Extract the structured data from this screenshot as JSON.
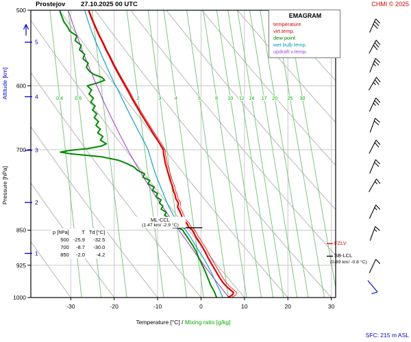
{
  "header": {
    "station": "Prostejov",
    "datetime": "27.10.2025 00 UTC",
    "copyright": "CHMI © 2025"
  },
  "legend": {
    "title": "EMAGRAM",
    "entries": [
      {
        "label": "temperature",
        "color": "#dd0000"
      },
      {
        "label": "virt.temp.",
        "color": "#dd0000"
      },
      {
        "label": "dew point",
        "color": "#008800"
      },
      {
        "label": "wet bulb temp.",
        "color": "#0099bb"
      },
      {
        "label": "updraft v.temp.",
        "color": "#aa44cc"
      }
    ]
  },
  "side_labels": {
    "pressure": "Pressure [hPa]",
    "altitude": "Altitude [km]"
  },
  "bottom_axis": {
    "label_temp": "Temperature [°C] /",
    "label_mix": "Mixing ratio [g/kg]"
  },
  "annotations": {
    "ml_ccl": {
      "label": "ML-CCL",
      "detail": "(1.47 km/ -2.9 °C)"
    },
    "fzlv": {
      "label": "FZLV"
    },
    "sb_lcl": {
      "label": "SB-LCL",
      "detail": "(0.89 km/ -0.8 °C)"
    },
    "sfc": "SFC: 215 m ASL"
  },
  "sounding_table": {
    "header": [
      "p [hPa]",
      "T",
      "Td [°C]"
    ],
    "rows": [
      [
        "500",
        "-25.9",
        "-32.5"
      ],
      [
        "700",
        "-8.7",
        "-30.0"
      ],
      [
        "850",
        "-2.0",
        "-4.2"
      ]
    ]
  },
  "chart_data": {
    "type": "line",
    "diagram": "emagram sounding",
    "title": "EMAGRAM",
    "x_axis": {
      "label": "Temperature [°C]",
      "ticks": [
        -30,
        -20,
        -10,
        0,
        10,
        20,
        30
      ],
      "range": [
        -39.2,
        31.0
      ]
    },
    "y_axis": {
      "label": "Pressure [hPa]",
      "ticks": [
        500,
        600,
        700,
        850,
        925,
        1000
      ],
      "scale": "log",
      "range": [
        500,
        1000
      ]
    },
    "altitude_ticks": [
      {
        "km": 1,
        "p": 899
      },
      {
        "km": 2,
        "p": 795
      },
      {
        "km": 3,
        "p": 701
      },
      {
        "km": 4,
        "p": 616
      },
      {
        "km": 5,
        "p": 540
      }
    ],
    "mixing_label_p": 618,
    "mixing_ratio_lines": [
      {
        "label": "0.4",
        "t1000": -27.5,
        "t500": -34.8
      },
      {
        "label": "0.6",
        "t1000": -23.0,
        "t500": -30.6
      },
      {
        "label": "1",
        "t1000": -17.1,
        "t500": -25.1
      },
      {
        "label": "2",
        "t1000": -8.6,
        "t500": -17.1
      },
      {
        "label": "3",
        "t1000": -3.3,
        "t500": -12.2
      },
      {
        "label": "4",
        "t1000": 0.6,
        "t500": -8.6
      },
      {
        "label": "6",
        "t1000": 6.3,
        "t500": -3.3
      },
      {
        "label": "8",
        "t1000": 10.5,
        "t500": 0.5
      },
      {
        "label": "10",
        "t1000": 13.9,
        "t500": 3.6
      },
      {
        "label": "12",
        "t1000": 16.6,
        "t500": 6.2
      },
      {
        "label": "14",
        "t1000": 19.0,
        "t500": 8.4
      },
      {
        "label": "17",
        "t1000": 22.1,
        "t500": 11.2
      },
      {
        "label": "20",
        "t1000": 24.7,
        "t500": 13.6
      },
      {
        "label": "25",
        "t1000": 28.4,
        "t500": 17.0
      },
      {
        "label": "30",
        "t1000": 31.4,
        "t500": 19.8
      }
    ],
    "dry_adiabats_theta": [
      -30,
      -20,
      -10,
      0,
      10,
      20,
      30,
      40,
      50,
      60,
      70,
      80,
      90
    ],
    "series": [
      {
        "name": "temperature",
        "color": "#dd0000",
        "width": 2.2,
        "points": [
          [
            1000,
            6.2
          ],
          [
            994,
            7.2
          ],
          [
            988,
            7.5
          ],
          [
            982,
            6.8
          ],
          [
            974,
            5.9
          ],
          [
            964,
            5.0
          ],
          [
            952,
            4.2
          ],
          [
            940,
            3.5
          ],
          [
            925,
            2.6
          ],
          [
            910,
            1.7
          ],
          [
            895,
            0.9
          ],
          [
            885,
            0.3
          ],
          [
            875,
            -0.4
          ],
          [
            862,
            -1.3
          ],
          [
            850,
            -2.0
          ],
          [
            843,
            -2.9
          ],
          [
            836,
            -3.3
          ],
          [
            828,
            -4.2
          ],
          [
            820,
            -4.5
          ],
          [
            812,
            -4.9
          ],
          [
            804,
            -5.4
          ],
          [
            796,
            -5.2
          ],
          [
            788,
            -5.8
          ],
          [
            780,
            -6.0
          ],
          [
            772,
            -6.4
          ],
          [
            764,
            -6.6
          ],
          [
            756,
            -7.0
          ],
          [
            748,
            -7.3
          ],
          [
            740,
            -7.6
          ],
          [
            732,
            -7.9
          ],
          [
            724,
            -8.2
          ],
          [
            716,
            -8.4
          ],
          [
            708,
            -8.6
          ],
          [
            700,
            -8.7
          ],
          [
            690,
            -9.5
          ],
          [
            680,
            -10.4
          ],
          [
            670,
            -11.3
          ],
          [
            660,
            -12.2
          ],
          [
            650,
            -13.1
          ],
          [
            640,
            -14.0
          ],
          [
            630,
            -14.9
          ],
          [
            620,
            -15.8
          ],
          [
            610,
            -16.6
          ],
          [
            600,
            -17.5
          ],
          [
            590,
            -18.4
          ],
          [
            580,
            -19.3
          ],
          [
            570,
            -20.2
          ],
          [
            560,
            -21.0
          ],
          [
            550,
            -21.9
          ],
          [
            540,
            -22.7
          ],
          [
            530,
            -23.6
          ],
          [
            520,
            -24.4
          ],
          [
            510,
            -25.2
          ],
          [
            500,
            -25.9
          ]
        ]
      },
      {
        "name": "virt temp",
        "color": "#dd0000",
        "width": 0.8,
        "derived_offset": {
          "at_1000": 0.8,
          "at_500": 0.15
        }
      },
      {
        "name": "dew point",
        "color": "#008800",
        "width": 2,
        "points": [
          [
            1000,
            3.6
          ],
          [
            985,
            3.0
          ],
          [
            970,
            2.2
          ],
          [
            950,
            1.4
          ],
          [
            935,
            0.8
          ],
          [
            925,
            0.3
          ],
          [
            915,
            -0.2
          ],
          [
            905,
            -0.7
          ],
          [
            895,
            -1.1
          ],
          [
            885,
            -1.7
          ],
          [
            875,
            -2.4
          ],
          [
            865,
            -3.1
          ],
          [
            855,
            -3.9
          ],
          [
            850,
            -4.2
          ],
          [
            845,
            -5.2
          ],
          [
            838,
            -6.8
          ],
          [
            832,
            -7.6
          ],
          [
            826,
            -7.2
          ],
          [
            820,
            -8.4
          ],
          [
            814,
            -8.0
          ],
          [
            808,
            -9.2
          ],
          [
            802,
            -8.8
          ],
          [
            796,
            -9.6
          ],
          [
            790,
            -9.2
          ],
          [
            784,
            -10.4
          ],
          [
            778,
            -10.0
          ],
          [
            772,
            -11.2
          ],
          [
            766,
            -10.8
          ],
          [
            760,
            -12.2
          ],
          [
            754,
            -11.8
          ],
          [
            748,
            -13.4
          ],
          [
            742,
            -13.0
          ],
          [
            736,
            -14.6
          ],
          [
            730,
            -15.4
          ],
          [
            724,
            -17.0
          ],
          [
            718,
            -19.0
          ],
          [
            712,
            -23.0
          ],
          [
            707,
            -30.0
          ],
          [
            704,
            -32.4
          ],
          [
            701,
            -30.0
          ],
          [
            698,
            -26.0
          ],
          [
            694,
            -23.0
          ],
          [
            690,
            -21.8
          ],
          [
            684,
            -23.2
          ],
          [
            678,
            -22.6
          ],
          [
            672,
            -23.8
          ],
          [
            666,
            -23.2
          ],
          [
            660,
            -24.2
          ],
          [
            654,
            -23.6
          ],
          [
            648,
            -24.6
          ],
          [
            642,
            -24.0
          ],
          [
            636,
            -25.0
          ],
          [
            630,
            -24.4
          ],
          [
            624,
            -25.4
          ],
          [
            618,
            -24.8
          ],
          [
            612,
            -25.8
          ],
          [
            606,
            -25.2
          ],
          [
            600,
            -26.2
          ],
          [
            596,
            -24.0
          ],
          [
            592,
            -22.2
          ],
          [
            588,
            -22.8
          ],
          [
            584,
            -24.6
          ],
          [
            580,
            -25.6
          ],
          [
            574,
            -26.4
          ],
          [
            568,
            -26.0
          ],
          [
            562,
            -27.2
          ],
          [
            556,
            -26.8
          ],
          [
            550,
            -28.0
          ],
          [
            544,
            -27.6
          ],
          [
            538,
            -29.0
          ],
          [
            532,
            -28.6
          ],
          [
            526,
            -30.2
          ],
          [
            520,
            -30.8
          ],
          [
            514,
            -31.6
          ],
          [
            508,
            -32.0
          ],
          [
            503,
            -32.4
          ],
          [
            500,
            -32.5
          ]
        ]
      },
      {
        "name": "wet bulb temp",
        "color": "#0099bb",
        "width": 1.1,
        "points": [
          [
            1000,
            5.0
          ],
          [
            985,
            4.4
          ],
          [
            970,
            3.7
          ],
          [
            955,
            3.0
          ],
          [
            940,
            2.3
          ],
          [
            925,
            1.5
          ],
          [
            910,
            0.6
          ],
          [
            895,
            -0.4
          ],
          [
            880,
            -1.4
          ],
          [
            865,
            -2.4
          ],
          [
            850,
            -3.5
          ],
          [
            840,
            -4.6
          ],
          [
            830,
            -5.6
          ],
          [
            820,
            -6.4
          ],
          [
            810,
            -7.0
          ],
          [
            800,
            -7.6
          ],
          [
            790,
            -8.1
          ],
          [
            780,
            -8.6
          ],
          [
            770,
            -9.1
          ],
          [
            760,
            -9.6
          ],
          [
            750,
            -10.1
          ],
          [
            740,
            -10.6
          ],
          [
            730,
            -11.0
          ],
          [
            720,
            -11.4
          ],
          [
            710,
            -11.8
          ],
          [
            700,
            -12.2
          ],
          [
            688,
            -13.0
          ],
          [
            676,
            -13.9
          ],
          [
            664,
            -14.8
          ],
          [
            652,
            -15.7
          ],
          [
            640,
            -16.6
          ],
          [
            628,
            -17.5
          ],
          [
            616,
            -18.4
          ],
          [
            604,
            -19.3
          ],
          [
            592,
            -20.3
          ],
          [
            580,
            -21.2
          ],
          [
            568,
            -22.1
          ],
          [
            556,
            -23.0
          ],
          [
            544,
            -23.9
          ],
          [
            532,
            -24.8
          ],
          [
            520,
            -25.6
          ],
          [
            510,
            -26.2
          ],
          [
            500,
            -26.8
          ]
        ]
      },
      {
        "name": "updraft v temp",
        "color": "#aa44cc",
        "width": 1.1,
        "points": [
          [
            1000,
            6.4
          ],
          [
            950,
            2.6
          ],
          [
            925,
            0.7
          ],
          [
            900,
            -1.2
          ],
          [
            875,
            -3.1
          ],
          [
            850,
            -5.1
          ],
          [
            825,
            -7.1
          ],
          [
            800,
            -9.1
          ],
          [
            775,
            -11.1
          ],
          [
            750,
            -13.1
          ],
          [
            725,
            -15.0
          ],
          [
            700,
            -16.9
          ],
          [
            675,
            -18.7
          ],
          [
            650,
            -20.5
          ],
          [
            625,
            -22.3
          ],
          [
            600,
            -24.0
          ],
          [
            575,
            -25.7
          ],
          [
            550,
            -27.4
          ],
          [
            525,
            -29.0
          ],
          [
            500,
            -30.6
          ]
        ]
      }
    ],
    "markers": {
      "ml_ccl": {
        "p": 845,
        "t_from": -6.6,
        "t_to": 0.3
      },
      "fzlv": {
        "p": 878
      },
      "sb_lcl": {
        "p": 905
      }
    },
    "wind_barbs": {
      "x": 544,
      "items": [
        {
          "p": 519,
          "spd": 30,
          "tilt": 24,
          "color": "#000000"
        },
        {
          "p": 546,
          "spd": 30,
          "tilt": 28,
          "color": "#000000"
        },
        {
          "p": 571,
          "spd": 25,
          "tilt": 22,
          "color": "#000000"
        },
        {
          "p": 597,
          "spd": 25,
          "tilt": 30,
          "color": "#000000"
        },
        {
          "p": 628,
          "spd": 25,
          "tilt": 25,
          "color": "#000000"
        },
        {
          "p": 660,
          "spd": 20,
          "tilt": 20,
          "color": "#000000"
        },
        {
          "p": 695,
          "spd": 20,
          "tilt": 27,
          "color": "#000000"
        },
        {
          "p": 729,
          "spd": 20,
          "tilt": 23,
          "color": "#000000"
        },
        {
          "p": 763,
          "spd": 15,
          "tilt": 30,
          "color": "#000000"
        },
        {
          "p": 813,
          "spd": 15,
          "tilt": 25,
          "color": "#000000"
        },
        {
          "p": 857,
          "spd": 15,
          "tilt": 20,
          "color": "#000000"
        },
        {
          "p": 927,
          "spd": 10,
          "tilt": 25,
          "color": "#000000"
        },
        {
          "p": 973,
          "spd": 10,
          "tilt": 140,
          "color": "#0000cc"
        }
      ]
    },
    "colors": {
      "grid": "#c8c8c8",
      "adiabat": "#b5b5b5",
      "mixing_line": "#7fc47f",
      "mixing_label": "#00aa00",
      "axis_blue": "#0000cc",
      "frame": "#000000"
    }
  }
}
